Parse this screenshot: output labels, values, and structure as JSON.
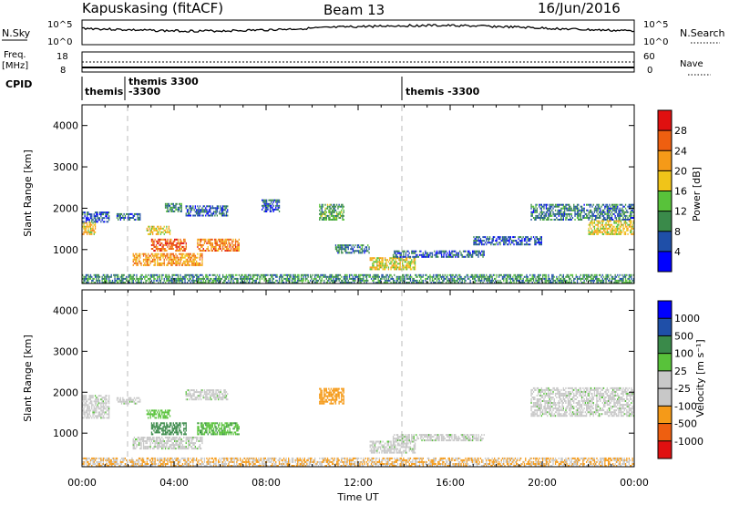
{
  "header": {
    "station": "Kapuskasing (fitACF)",
    "beam": "Beam 13",
    "date": "16/Jun/2016"
  },
  "top_panels": {
    "nsky_label": "N.Sky",
    "nsky_ticks": [
      "10^5",
      "10^0"
    ],
    "nsearch_label": "N.Search",
    "nsearch_ticks": [
      "10^5",
      "10^0"
    ],
    "freq_label": "Freq.",
    "freq_unit": "[MHz]",
    "freq_ticks": [
      "18",
      "8"
    ],
    "nave_label": "Nave",
    "nave_ticks": [
      "60",
      "0"
    ],
    "cpid_label": "CPID",
    "cpid_segments": [
      {
        "text": "themis",
        "start_h": 0.0
      },
      {
        "text": "themis 3300",
        "start_h": 1.8
      },
      {
        "text": "-3300",
        "start_h": 1.8
      },
      {
        "text": "themis -3300",
        "start_h": 14.0
      }
    ]
  },
  "colors": {
    "power_scale": [
      "#0000ff",
      "#1f4fa8",
      "#3a8a4a",
      "#58c23a",
      "#f0c419",
      "#f59a18",
      "#ee5f10",
      "#e01010"
    ],
    "velocity_scale": [
      "#0000ff",
      "#1f4fa8",
      "#3a8a4a",
      "#58c23a",
      "#c8c8c8",
      "#c8c8c8",
      "#f59a18",
      "#ee5f10",
      "#e01010"
    ],
    "ground_scatter": "#c8c8c8"
  },
  "chart_data": [
    {
      "type": "heatmap",
      "name": "power",
      "ylabel": "Slant Range [km]",
      "xlabel": "",
      "xlim_hours": [
        0,
        24
      ],
      "ylim_km": [
        180,
        4500
      ],
      "xticks": [
        "00:00",
        "04:00",
        "08:00",
        "12:00",
        "16:00",
        "20:00",
        "00:00"
      ],
      "yticks": [
        1000,
        2000,
        3000,
        4000
      ],
      "colorbar": {
        "label": "Power [dB]",
        "ticks": [
          "4",
          "8",
          "12",
          "16",
          "20",
          "24",
          "28"
        ]
      },
      "regions": [
        {
          "t0": 0.0,
          "t1": 0.6,
          "r0": 1350,
          "r1": 1650,
          "v": 20
        },
        {
          "t0": 0.0,
          "t1": 1.2,
          "r0": 1650,
          "r1": 1900,
          "v": 6
        },
        {
          "t0": 1.5,
          "t1": 2.5,
          "r0": 1700,
          "r1": 1850,
          "v": 6
        },
        {
          "t0": 2.8,
          "t1": 3.8,
          "r0": 1350,
          "r1": 1550,
          "v": 18
        },
        {
          "t0": 3.0,
          "t1": 4.5,
          "r0": 950,
          "r1": 1250,
          "v": 26
        },
        {
          "t0": 2.2,
          "t1": 5.2,
          "r0": 600,
          "r1": 900,
          "v": 22
        },
        {
          "t0": 5.0,
          "t1": 6.8,
          "r0": 950,
          "r1": 1250,
          "v": 24
        },
        {
          "t0": 4.5,
          "t1": 6.3,
          "r0": 1800,
          "r1": 2050,
          "v": 6
        },
        {
          "t0": 3.6,
          "t1": 4.3,
          "r0": 1900,
          "r1": 2100,
          "v": 10
        },
        {
          "t0": 7.8,
          "t1": 8.6,
          "r0": 1900,
          "r1": 2200,
          "v": 6
        },
        {
          "t0": 10.3,
          "t1": 11.4,
          "r0": 1700,
          "r1": 2100,
          "v": 12
        },
        {
          "t0": 11.0,
          "t1": 12.5,
          "r0": 900,
          "r1": 1100,
          "v": 8
        },
        {
          "t0": 12.5,
          "t1": 14.5,
          "r0": 500,
          "r1": 800,
          "v": 18
        },
        {
          "t0": 13.5,
          "t1": 17.5,
          "r0": 800,
          "r1": 950,
          "v": 6
        },
        {
          "t0": 17.0,
          "t1": 20.0,
          "r0": 1100,
          "r1": 1300,
          "v": 6
        },
        {
          "t0": 19.5,
          "t1": 24.0,
          "r0": 1700,
          "r1": 2100,
          "v": 8
        },
        {
          "t0": 22.0,
          "t1": 24.0,
          "r0": 1350,
          "r1": 1700,
          "v": 18
        },
        {
          "t0": 0.0,
          "t1": 24.0,
          "r0": 180,
          "r1": 380,
          "v": 10
        }
      ]
    },
    {
      "type": "heatmap",
      "name": "velocity",
      "ylabel": "Slant Range [km]",
      "xlabel": "Time UT",
      "xlim_hours": [
        0,
        24
      ],
      "ylim_km": [
        180,
        4500
      ],
      "xticks": [
        "00:00",
        "04:00",
        "08:00",
        "12:00",
        "16:00",
        "20:00",
        "00:00"
      ],
      "yticks": [
        1000,
        2000,
        3000,
        4000
      ],
      "colorbar": {
        "label": "Velocity [m s⁻¹]",
        "ticks": [
          "1000",
          "500",
          "100",
          "25",
          "-25",
          "-100",
          "-500",
          "-1000"
        ]
      },
      "regions": [
        {
          "t0": 0.0,
          "t1": 1.2,
          "r0": 1350,
          "r1": 1900,
          "v": 0
        },
        {
          "t0": 1.5,
          "t1": 2.5,
          "r0": 1700,
          "r1": 1850,
          "v": 0
        },
        {
          "t0": 2.8,
          "t1": 3.8,
          "r0": 1350,
          "r1": 1550,
          "v": 60
        },
        {
          "t0": 3.0,
          "t1": 4.5,
          "r0": 950,
          "r1": 1250,
          "v": 150
        },
        {
          "t0": 2.2,
          "t1": 5.2,
          "r0": 600,
          "r1": 900,
          "v": 0
        },
        {
          "t0": 5.0,
          "t1": 6.8,
          "r0": 950,
          "r1": 1250,
          "v": 80
        },
        {
          "t0": 4.5,
          "t1": 6.3,
          "r0": 1800,
          "r1": 2050,
          "v": 0
        },
        {
          "t0": 10.3,
          "t1": 11.4,
          "r0": 1700,
          "r1": 2100,
          "v": -300
        },
        {
          "t0": 12.5,
          "t1": 14.5,
          "r0": 500,
          "r1": 800,
          "v": 0
        },
        {
          "t0": 13.5,
          "t1": 17.5,
          "r0": 800,
          "r1": 950,
          "v": 0
        },
        {
          "t0": 19.5,
          "t1": 24.0,
          "r0": 1400,
          "r1": 2100,
          "v": 0
        },
        {
          "t0": 0.0,
          "t1": 24.0,
          "r0": 180,
          "r1": 380,
          "v": -100
        }
      ]
    }
  ]
}
